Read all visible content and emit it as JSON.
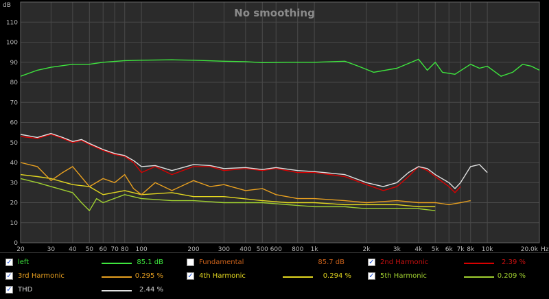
{
  "chart_data": {
    "type": "line",
    "title": "No smoothing",
    "ylabel": "dB",
    "xlabel": "Hz",
    "xscale": "log",
    "xlim": [
      20,
      20000
    ],
    "ylim": [
      0,
      120
    ],
    "grid": true,
    "yticks": [
      0,
      10,
      20,
      30,
      40,
      50,
      60,
      70,
      80,
      90,
      100,
      110
    ],
    "xticks": [
      {
        "v": 20,
        "label": "20"
      },
      {
        "v": 30,
        "label": "30"
      },
      {
        "v": 40,
        "label": "40"
      },
      {
        "v": 50,
        "label": "50"
      },
      {
        "v": 60,
        "label": "60"
      },
      {
        "v": 70,
        "label": "70"
      },
      {
        "v": 80,
        "label": "80"
      },
      {
        "v": 100,
        "label": "100"
      },
      {
        "v": 200,
        "label": "200"
      },
      {
        "v": 300,
        "label": "300"
      },
      {
        "v": 400,
        "label": "400"
      },
      {
        "v": 500,
        "label": "500"
      },
      {
        "v": 600,
        "label": "600"
      },
      {
        "v": 800,
        "label": "800"
      },
      {
        "v": 1000,
        "label": "1k"
      },
      {
        "v": 2000,
        "label": "2k"
      },
      {
        "v": 3000,
        "label": "3k"
      },
      {
        "v": 4000,
        "label": "4k"
      },
      {
        "v": 5000,
        "label": "5k"
      },
      {
        "v": 6000,
        "label": "6k"
      },
      {
        "v": 7000,
        "label": "7k"
      },
      {
        "v": 8000,
        "label": "8k"
      },
      {
        "v": 10000,
        "label": "10k"
      },
      {
        "v": 20000,
        "label": "20.0k"
      }
    ],
    "series": [
      {
        "name": "left",
        "color": "#3ee63e",
        "points": [
          [
            20,
            83
          ],
          [
            25,
            86
          ],
          [
            30,
            87.5
          ],
          [
            40,
            89
          ],
          [
            50,
            89
          ],
          [
            60,
            90
          ],
          [
            80,
            90.8
          ],
          [
            100,
            91
          ],
          [
            150,
            91.2
          ],
          [
            200,
            91
          ],
          [
            300,
            90.5
          ],
          [
            400,
            90.3
          ],
          [
            500,
            89.8
          ],
          [
            700,
            90
          ],
          [
            1000,
            90
          ],
          [
            1500,
            90.5
          ],
          [
            1800,
            88
          ],
          [
            2200,
            85
          ],
          [
            3000,
            87
          ],
          [
            4000,
            91.5
          ],
          [
            4500,
            86
          ],
          [
            5000,
            90
          ],
          [
            5500,
            85
          ],
          [
            6500,
            84
          ],
          [
            8000,
            89
          ],
          [
            9000,
            87
          ],
          [
            10000,
            88
          ],
          [
            12000,
            83
          ],
          [
            14000,
            85
          ],
          [
            16000,
            89
          ],
          [
            18000,
            88
          ],
          [
            20000,
            86
          ]
        ]
      },
      {
        "name": "2nd Harmonic",
        "color": "#d80000",
        "points": [
          [
            20,
            53
          ],
          [
            25,
            52
          ],
          [
            30,
            54
          ],
          [
            35,
            52
          ],
          [
            40,
            50
          ],
          [
            45,
            51
          ],
          [
            50,
            49
          ],
          [
            60,
            46
          ],
          [
            70,
            44
          ],
          [
            80,
            43
          ],
          [
            90,
            40
          ],
          [
            100,
            35
          ],
          [
            120,
            38
          ],
          [
            150,
            34
          ],
          [
            200,
            38
          ],
          [
            250,
            38
          ],
          [
            300,
            36
          ],
          [
            400,
            37
          ],
          [
            500,
            36
          ],
          [
            600,
            37
          ],
          [
            800,
            35
          ],
          [
            1000,
            35
          ],
          [
            1500,
            33
          ],
          [
            2000,
            29
          ],
          [
            2500,
            26
          ],
          [
            3000,
            28
          ],
          [
            3500,
            33
          ],
          [
            4000,
            38
          ],
          [
            4500,
            36
          ],
          [
            5000,
            33
          ],
          [
            6000,
            28
          ],
          [
            6500,
            25
          ],
          [
            7000,
            28
          ]
        ]
      },
      {
        "name": "3rd Harmonic",
        "color": "#e8a020",
        "points": [
          [
            20,
            40
          ],
          [
            25,
            38
          ],
          [
            30,
            31
          ],
          [
            35,
            35
          ],
          [
            40,
            38
          ],
          [
            50,
            28
          ],
          [
            60,
            32
          ],
          [
            70,
            30
          ],
          [
            80,
            34
          ],
          [
            90,
            27
          ],
          [
            100,
            24
          ],
          [
            120,
            30
          ],
          [
            150,
            26
          ],
          [
            200,
            31
          ],
          [
            250,
            28
          ],
          [
            300,
            29
          ],
          [
            400,
            26
          ],
          [
            500,
            27
          ],
          [
            600,
            24
          ],
          [
            800,
            22
          ],
          [
            1000,
            22
          ],
          [
            1500,
            21
          ],
          [
            2000,
            20
          ],
          [
            3000,
            21
          ],
          [
            4000,
            20
          ],
          [
            5000,
            20
          ],
          [
            6000,
            19
          ],
          [
            7000,
            20
          ],
          [
            8000,
            21
          ]
        ]
      },
      {
        "name": "4th Harmonic",
        "color": "#e4d820",
        "points": [
          [
            20,
            34
          ],
          [
            25,
            33
          ],
          [
            30,
            32
          ],
          [
            40,
            29
          ],
          [
            50,
            28
          ],
          [
            60,
            24
          ],
          [
            80,
            26
          ],
          [
            100,
            24
          ],
          [
            150,
            25
          ],
          [
            200,
            23
          ],
          [
            300,
            23
          ],
          [
            500,
            21
          ],
          [
            700,
            20
          ],
          [
            1000,
            20
          ],
          [
            1500,
            19
          ],
          [
            2000,
            19
          ],
          [
            3000,
            19
          ],
          [
            4000,
            18
          ],
          [
            5000,
            18
          ]
        ]
      },
      {
        "name": "5th Harmonic",
        "color": "#a0d030",
        "points": [
          [
            20,
            32
          ],
          [
            25,
            30
          ],
          [
            30,
            28
          ],
          [
            40,
            25
          ],
          [
            45,
            20
          ],
          [
            50,
            16
          ],
          [
            55,
            22
          ],
          [
            60,
            20
          ],
          [
            80,
            24
          ],
          [
            100,
            22
          ],
          [
            150,
            21
          ],
          [
            200,
            21
          ],
          [
            300,
            20
          ],
          [
            500,
            20
          ],
          [
            700,
            19
          ],
          [
            1000,
            18
          ],
          [
            1500,
            18
          ],
          [
            2000,
            17
          ],
          [
            3000,
            17
          ],
          [
            4000,
            17
          ],
          [
            5000,
            16
          ]
        ]
      },
      {
        "name": "THD",
        "color": "#e0e0e0",
        "points": [
          [
            20,
            54
          ],
          [
            25,
            52.5
          ],
          [
            30,
            54.5
          ],
          [
            35,
            52.5
          ],
          [
            40,
            50.5
          ],
          [
            45,
            51.5
          ],
          [
            50,
            49.5
          ],
          [
            60,
            46.5
          ],
          [
            70,
            44.5
          ],
          [
            80,
            43.5
          ],
          [
            90,
            41
          ],
          [
            100,
            38
          ],
          [
            120,
            38.5
          ],
          [
            150,
            36
          ],
          [
            200,
            39
          ],
          [
            250,
            38.5
          ],
          [
            300,
            37
          ],
          [
            400,
            37.5
          ],
          [
            500,
            36.5
          ],
          [
            600,
            37.5
          ],
          [
            800,
            36
          ],
          [
            1000,
            35.5
          ],
          [
            1500,
            34
          ],
          [
            2000,
            30
          ],
          [
            2500,
            28
          ],
          [
            3000,
            30
          ],
          [
            3500,
            35
          ],
          [
            4000,
            38
          ],
          [
            4500,
            37
          ],
          [
            5000,
            34
          ],
          [
            6000,
            30
          ],
          [
            6500,
            27
          ],
          [
            7000,
            30
          ],
          [
            8000,
            38
          ],
          [
            9000,
            39
          ],
          [
            10000,
            35
          ]
        ]
      }
    ]
  },
  "legend": [
    {
      "key": "left",
      "label": "left",
      "checked": true,
      "color": "#3ee63e",
      "text_color": "#3ee63e",
      "value": "85.1 dB"
    },
    {
      "key": "fundamental",
      "label": "Fundamental",
      "checked": false,
      "color": "#e06a10",
      "text_color": "#c8601a",
      "value": "85.7 dB"
    },
    {
      "key": "h2",
      "label": "2nd Harmonic",
      "checked": true,
      "color": "#d80000",
      "text_color": "#c81010",
      "value": "2.39 %"
    },
    {
      "key": "h3",
      "label": "3rd Harmonic",
      "checked": true,
      "color": "#e8a020",
      "text_color": "#e8a020",
      "value": "0.295 %"
    },
    {
      "key": "h4",
      "label": "4th Harmonic",
      "checked": true,
      "color": "#e4d820",
      "text_color": "#e4d820",
      "value": "0.294 %"
    },
    {
      "key": "h5",
      "label": "5th Harmonic",
      "checked": true,
      "color": "#a0d030",
      "text_color": "#a0d030",
      "value": "0.209 %"
    },
    {
      "key": "thd",
      "label": "THD",
      "checked": true,
      "color": "#e0e0e0",
      "text_color": "#d0d0d0",
      "value": "2.44 %"
    }
  ]
}
